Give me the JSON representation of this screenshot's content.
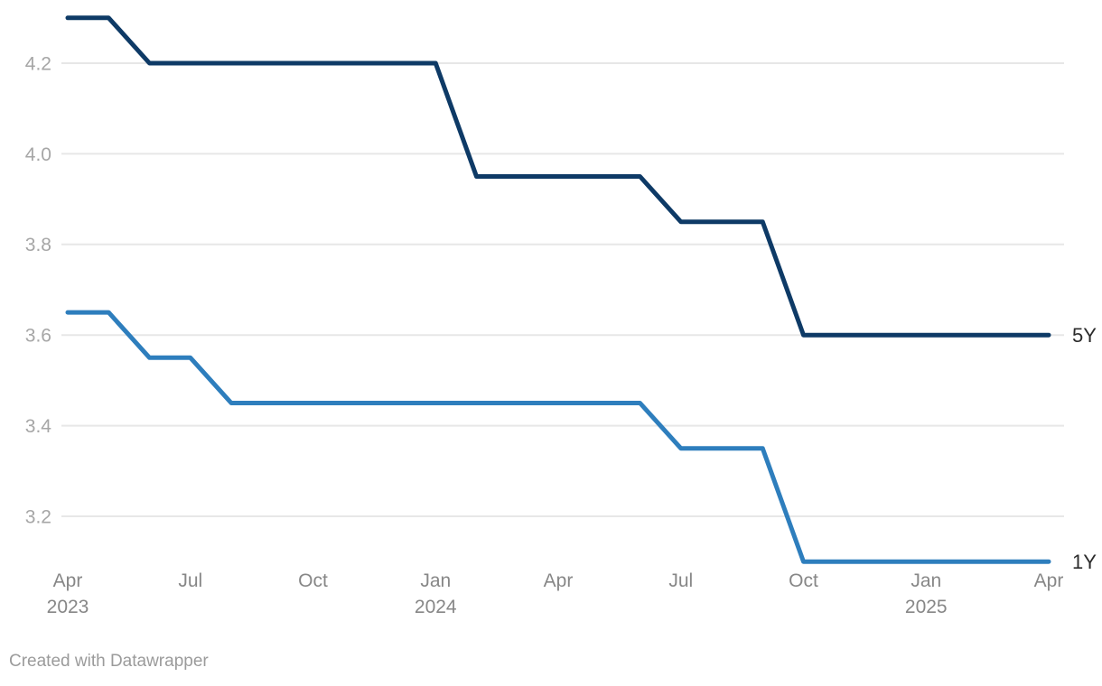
{
  "chart_data": {
    "type": "line",
    "title": "",
    "xlabel": "",
    "ylabel": "",
    "x": [
      "Apr 2023",
      "May 2023",
      "Jun 2023",
      "Jul 2023",
      "Aug 2023",
      "Sep 2023",
      "Oct 2023",
      "Nov 2023",
      "Dec 2023",
      "Jan 2024",
      "Feb 2024",
      "Mar 2024",
      "Apr 2024",
      "May 2024",
      "Jun 2024",
      "Jul 2024",
      "Aug 2024",
      "Sep 2024",
      "Oct 2024",
      "Nov 2024",
      "Dec 2024",
      "Jan 2025",
      "Feb 2025",
      "Mar 2025",
      "Apr 2025"
    ],
    "series": [
      {
        "name": "5Y",
        "color": "#0e3a66",
        "values": [
          4.3,
          4.3,
          4.2,
          4.2,
          4.2,
          4.2,
          4.2,
          4.2,
          4.2,
          4.2,
          3.95,
          3.95,
          3.95,
          3.95,
          3.95,
          3.85,
          3.85,
          3.85,
          3.6,
          3.6,
          3.6,
          3.6,
          3.6,
          3.6,
          3.6
        ]
      },
      {
        "name": "1Y",
        "color": "#2e7ebd",
        "values": [
          3.65,
          3.65,
          3.55,
          3.55,
          3.45,
          3.45,
          3.45,
          3.45,
          3.45,
          3.45,
          3.45,
          3.45,
          3.45,
          3.45,
          3.45,
          3.35,
          3.35,
          3.35,
          3.1,
          3.1,
          3.1,
          3.1,
          3.1,
          3.1,
          3.1
        ]
      }
    ],
    "y_ticks": [
      "4.2",
      "4.0",
      "3.8",
      "3.6",
      "3.4",
      "3.2"
    ],
    "x_ticks": [
      {
        "index": 0,
        "label": "Apr",
        "year": "2023"
      },
      {
        "index": 3,
        "label": "Jul",
        "year": ""
      },
      {
        "index": 6,
        "label": "Oct",
        "year": ""
      },
      {
        "index": 9,
        "label": "Jan",
        "year": "2024"
      },
      {
        "index": 12,
        "label": "Apr",
        "year": ""
      },
      {
        "index": 15,
        "label": "Jul",
        "year": ""
      },
      {
        "index": 18,
        "label": "Oct",
        "year": ""
      },
      {
        "index": 21,
        "label": "Jan",
        "year": "2025"
      },
      {
        "index": 24,
        "label": "Apr",
        "year": ""
      }
    ],
    "ylim": [
      3.1,
      4.3
    ],
    "grid": true,
    "legend_position": "line-end-labels"
  },
  "colors": {
    "background": "#ffffff",
    "gridline": "#e7e7e7",
    "y_tick_label": "#a6a6a6",
    "x_tick_label": "#878787",
    "series_end_label": "#2b2b2b",
    "attribution": "#9b9b9b"
  },
  "footer": {
    "text": "Created with Datawrapper"
  }
}
